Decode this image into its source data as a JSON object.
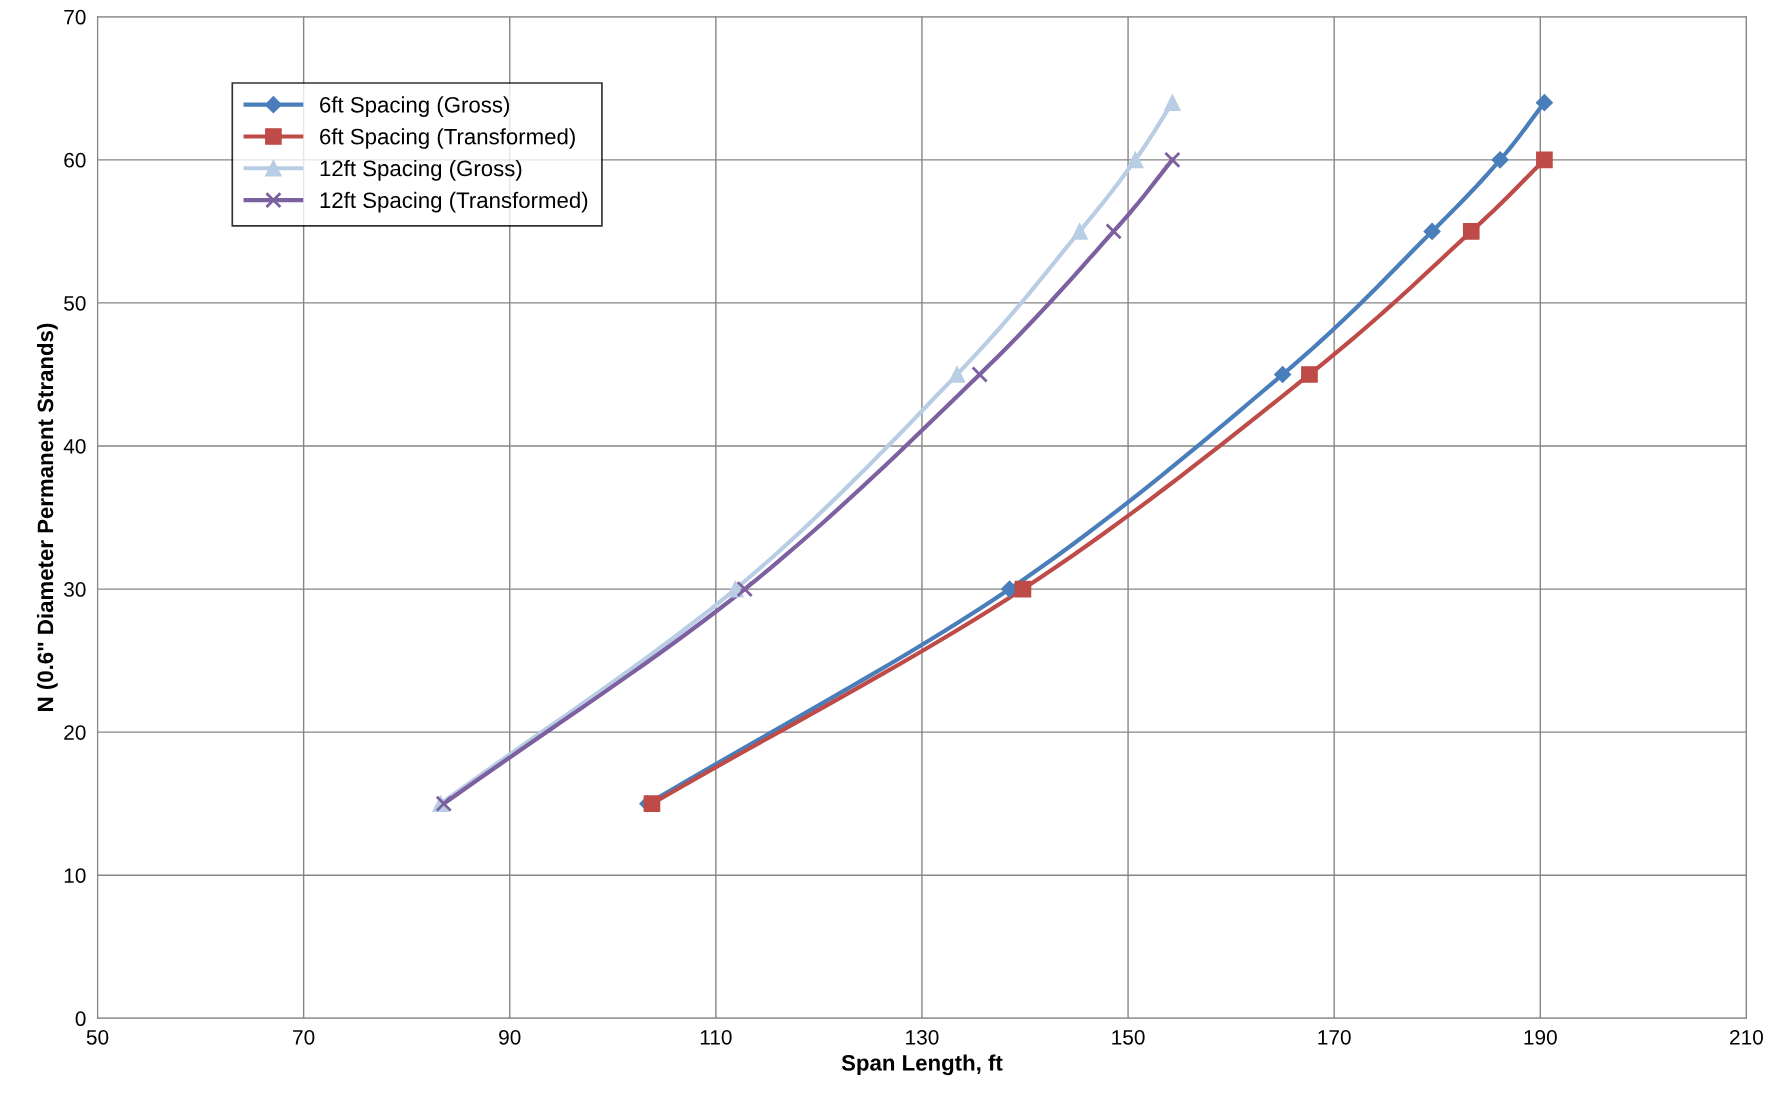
{
  "chart_data": {
    "type": "line",
    "xlabel": "Span Length, ft",
    "ylabel": "N (0.6\" Diameter Permanent Strands)",
    "series": [
      {
        "name": "6ft Spacing (Gross)",
        "color": "#4a7ebb",
        "marker": "diamond",
        "x": [
          103.4,
          138.5,
          165.0,
          179.5,
          186.1,
          190.4
        ],
        "values": [
          15,
          30,
          45,
          55,
          60,
          64
        ]
      },
      {
        "name": "6ft Spacing (Transformed)",
        "color": "#be4b48",
        "marker": "square",
        "x": [
          103.8,
          139.8,
          167.6,
          183.3,
          190.4
        ],
        "values": [
          15,
          30,
          45,
          55,
          60
        ]
      },
      {
        "name": "12ft Spacing (Gross)",
        "color": "#b9cde5",
        "marker": "triangle",
        "x": [
          83.3,
          111.9,
          133.4,
          145.3,
          150.7,
          154.3
        ],
        "values": [
          15,
          30,
          45,
          55,
          60,
          64
        ]
      },
      {
        "name": "12ft Spacing (Transformed)",
        "color": "#7d60a0",
        "marker": "cross",
        "x": [
          83.6,
          112.8,
          135.6,
          148.6,
          154.3
        ],
        "values": [
          15,
          30,
          45,
          55,
          60
        ]
      }
    ],
    "xlim": [
      50,
      210
    ],
    "xticks": [
      50,
      70,
      90,
      110,
      130,
      150,
      170,
      190,
      210
    ],
    "ylim": [
      0,
      70
    ],
    "yticks": [
      0,
      10,
      20,
      30,
      40,
      50,
      60,
      70
    ],
    "grid": true,
    "legend": "top left",
    "line_style": "solid"
  }
}
